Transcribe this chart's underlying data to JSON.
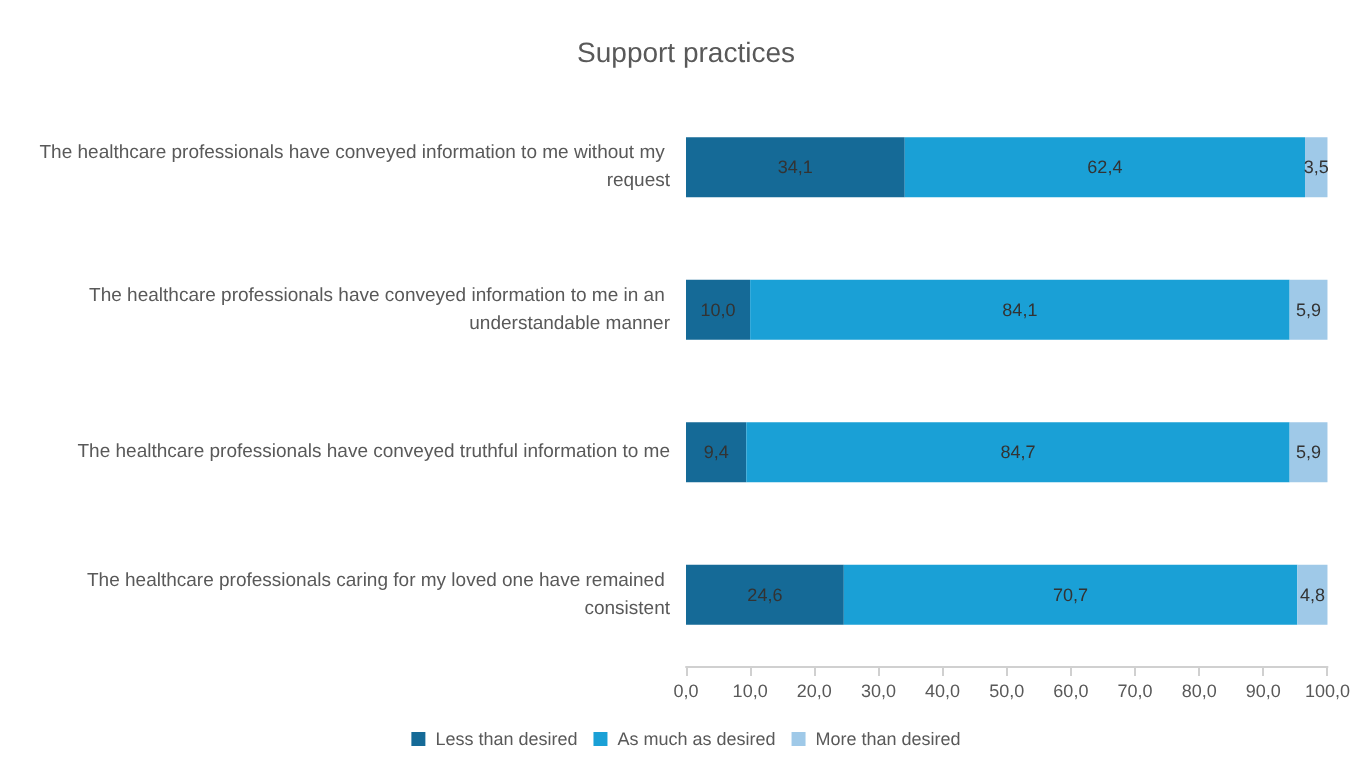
{
  "chart_data": {
    "type": "bar",
    "orientation": "horizontal",
    "stacked": true,
    "title": "Support practices",
    "categories": [
      "The healthcare professionals have conveyed information to me without my request",
      "The healthcare professionals have conveyed information to me in an understandable manner",
      "The healthcare professionals have conveyed truthful information to me",
      "The healthcare professionals caring for my loved one have remained consistent"
    ],
    "series": [
      {
        "name": "Less than desired",
        "color": "#156a97",
        "values": [
          34.1,
          10.0,
          9.4,
          24.6
        ],
        "value_labels": [
          "34,1",
          "10,0",
          "9,4",
          "24,6"
        ]
      },
      {
        "name": "As much as desired",
        "color": "#1aa0d6",
        "values": [
          62.4,
          84.1,
          84.7,
          70.7
        ],
        "value_labels": [
          "62,4",
          "84,1",
          "84,7",
          "70,7"
        ]
      },
      {
        "name": "More than desired",
        "color": "#9fc9e8",
        "values": [
          3.5,
          5.9,
          5.9,
          4.8
        ],
        "value_labels": [
          "3,5",
          "5,9",
          "5,9",
          "4,8"
        ]
      }
    ],
    "xlim": [
      0,
      100
    ],
    "xticks": [
      {
        "value": 0,
        "label": "0,0"
      },
      {
        "value": 10,
        "label": "10,0"
      },
      {
        "value": 20,
        "label": "20,0"
      },
      {
        "value": 30,
        "label": "30,0"
      },
      {
        "value": 40,
        "label": "40,0"
      },
      {
        "value": 50,
        "label": "50,0"
      },
      {
        "value": 60,
        "label": "60,0"
      },
      {
        "value": 70,
        "label": "70,0"
      },
      {
        "value": 80,
        "label": "80,0"
      },
      {
        "value": 90,
        "label": "90,0"
      },
      {
        "value": 100,
        "label": "100,0"
      }
    ],
    "grid": false,
    "legend": "bottom"
  }
}
